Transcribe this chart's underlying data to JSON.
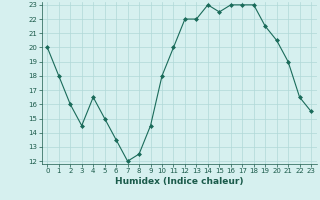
{
  "x": [
    0,
    1,
    2,
    3,
    4,
    5,
    6,
    7,
    8,
    9,
    10,
    11,
    12,
    13,
    14,
    15,
    16,
    17,
    18,
    19,
    20,
    21,
    22,
    23
  ],
  "y": [
    20,
    18,
    16,
    14.5,
    16.5,
    15,
    13.5,
    12,
    12.5,
    14.5,
    18,
    20,
    22,
    22,
    23,
    22.5,
    23,
    23,
    23,
    21.5,
    20.5,
    19,
    16.5,
    15.5
  ],
  "line_color": "#1a6b5a",
  "marker": "D",
  "marker_size": 2,
  "bg_color": "#d6f0ef",
  "grid_color": "#b0d8d8",
  "xlabel": "Humidex (Indice chaleur)",
  "ylim": [
    12,
    23
  ],
  "xlim": [
    -0.5,
    23.5
  ],
  "yticks": [
    12,
    13,
    14,
    15,
    16,
    17,
    18,
    19,
    20,
    21,
    22,
    23
  ],
  "xticks": [
    0,
    1,
    2,
    3,
    4,
    5,
    6,
    7,
    8,
    9,
    10,
    11,
    12,
    13,
    14,
    15,
    16,
    17,
    18,
    19,
    20,
    21,
    22,
    23
  ],
  "tick_fontsize": 5,
  "xlabel_fontsize": 6.5,
  "tick_color": "#1a5a4a"
}
